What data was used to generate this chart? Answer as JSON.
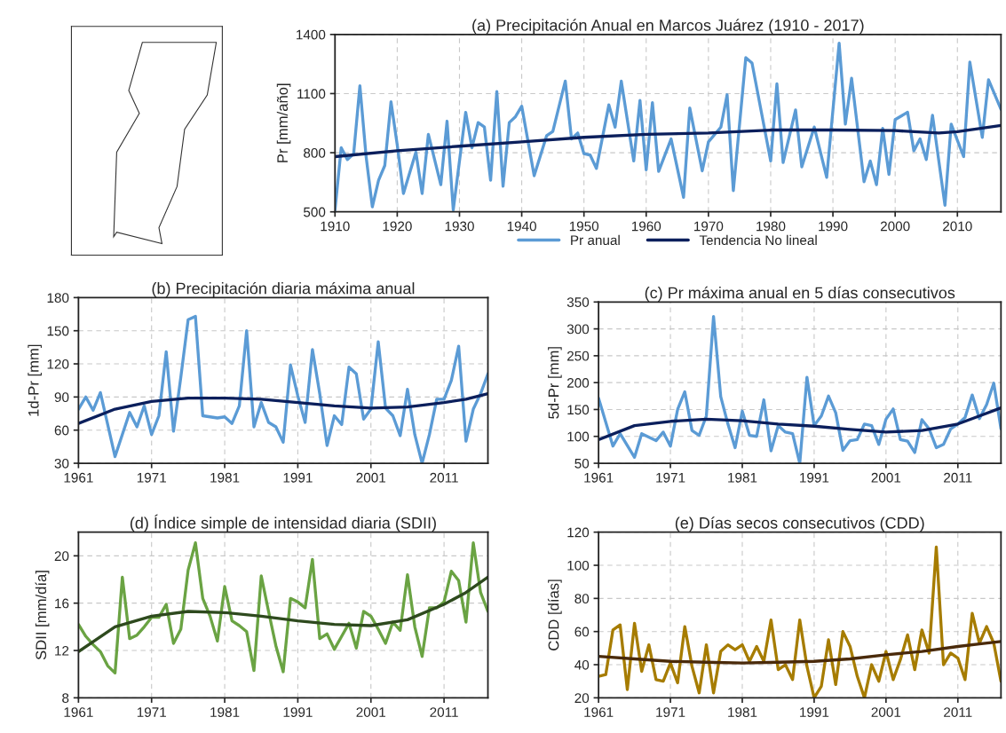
{
  "chart_data": [
    {
      "type": "line",
      "title": "(a) Precipitación Anual en Marcos Juárez (1910 - 2017)",
      "ylabel": "Pr [mm/año]",
      "xlim": [
        1910,
        2017
      ],
      "xticks": [
        1910,
        1920,
        1930,
        1940,
        1950,
        1960,
        1970,
        1980,
        1990,
        2000,
        2010
      ],
      "ylim": [
        500,
        1400
      ],
      "yticks": [
        500,
        800,
        1100,
        1400
      ],
      "grid": true,
      "legend": "bottom",
      "series": [
        {
          "name": "Pr anual",
          "color": "#5b9bd5",
          "x": [
            1910,
            1911,
            1912,
            1913,
            1914,
            1915,
            1916,
            1917,
            1918,
            1919,
            1920,
            1921,
            1923,
            1924,
            1925,
            1927,
            1928,
            1929,
            1931,
            1932,
            1933,
            1934,
            1935,
            1936,
            1937,
            1938,
            1939,
            1940,
            1942,
            1944,
            1945,
            1947,
            1948,
            1949,
            1950,
            1951,
            1952,
            1954,
            1955,
            1956,
            1958,
            1959,
            1960,
            1961,
            1962,
            1964,
            1966,
            1967,
            1969,
            1970,
            1972,
            1973,
            1974,
            1976,
            1977,
            1980,
            1981,
            1982,
            1984,
            1985,
            1987,
            1989,
            1991,
            1992,
            1993,
            1995,
            1996,
            1997,
            1998,
            1999,
            2000,
            2002,
            2003,
            2004,
            2005,
            2006,
            2008,
            2009,
            2011,
            2012,
            2014,
            2015,
            2017
          ],
          "values": [
            510,
            825,
            765,
            795,
            1140,
            780,
            525,
            660,
            735,
            1058,
            840,
            593,
            803,
            593,
            893,
            638,
            960,
            510,
            1005,
            825,
            953,
            930,
            660,
            1110,
            630,
            953,
            983,
            1036,
            683,
            886,
            908,
            1163,
            870,
            900,
            795,
            788,
            720,
            1043,
            930,
            1163,
            758,
            1065,
            713,
            1054,
            705,
            870,
            574,
            1027,
            708,
            855,
            930,
            1094,
            608,
            1282,
            1255,
            758,
            1150,
            750,
            1017,
            728,
            930,
            675,
            1356,
            945,
            1178,
            653,
            758,
            638,
            923,
            690,
            968,
            1005,
            810,
            870,
            765,
            990,
            533,
            945,
            780,
            1260,
            878,
            1170,
            1020
          ]
        },
        {
          "name": "Tendencia No lineal",
          "color": "#0b1f5c",
          "x": [
            1910,
            1920,
            1930,
            1940,
            1950,
            1960,
            1970,
            1980,
            1990,
            2000,
            2007,
            2010,
            2017
          ],
          "values": [
            780,
            810,
            833,
            855,
            878,
            893,
            900,
            915,
            915,
            912,
            900,
            907,
            938
          ]
        }
      ]
    },
    {
      "type": "line",
      "title": "(b) Precipitación diaria máxima anual",
      "ylabel": "1d-Pr [mm]",
      "xlim": [
        1961,
        2017
      ],
      "xticks": [
        1961,
        1971,
        1981,
        1991,
        2001,
        2011
      ],
      "ylim": [
        30,
        180
      ],
      "yticks": [
        30,
        60,
        90,
        120,
        150,
        180
      ],
      "grid": true,
      "series": [
        {
          "color": "#5b9bd5",
          "x": [
            1961,
            1962,
            1963,
            1964,
            1966,
            1968,
            1969,
            1970,
            1971,
            1972,
            1973,
            1974,
            1975,
            1976,
            1977,
            1978,
            1980,
            1981,
            1982,
            1983,
            1984,
            1985,
            1986,
            1987,
            1988,
            1989,
            1990,
            1991,
            1992,
            1993,
            1994,
            1995,
            1996,
            1997,
            1998,
            1999,
            2000,
            2001,
            2002,
            2003,
            2004,
            2005,
            2006,
            2007,
            2008,
            2009,
            2010,
            2011,
            2012,
            2013,
            2014,
            2015,
            2016,
            2017
          ],
          "values": [
            79,
            90,
            78,
            94,
            36,
            76,
            63,
            82,
            56,
            73,
            131,
            59,
            108,
            160,
            163,
            73,
            71,
            72,
            66,
            82,
            150,
            63,
            85,
            67,
            63,
            49,
            119,
            91,
            67,
            133,
            93,
            46,
            73,
            65,
            117,
            111,
            70,
            79,
            140,
            80,
            73,
            55,
            97,
            56,
            30,
            56,
            88,
            88,
            105,
            136,
            50,
            79,
            93,
            111
          ]
        },
        {
          "color": "#0b1f5c",
          "x": [
            1961,
            1966,
            1971,
            1976,
            1981,
            1986,
            1991,
            1996,
            2001,
            2006,
            2011,
            2014,
            2017
          ],
          "values": [
            66,
            79,
            86,
            89,
            89,
            88,
            85,
            82,
            80,
            81,
            85,
            88,
            93
          ]
        }
      ]
    },
    {
      "type": "line",
      "title": "(c) Pr máxima anual en 5 días consecutivos",
      "ylabel": "5d-Pr [mm]",
      "xlim": [
        1961,
        2017
      ],
      "xticks": [
        1961,
        1971,
        1981,
        1991,
        2001,
        2011
      ],
      "ylim": [
        50,
        350
      ],
      "yticks": [
        50,
        100,
        150,
        200,
        250,
        300,
        350
      ],
      "grid": true,
      "series": [
        {
          "color": "#5b9bd5",
          "x": [
            1961,
            1963,
            1964,
            1966,
            1967,
            1969,
            1970,
            1971,
            1972,
            1973,
            1974,
            1975,
            1976,
            1977,
            1978,
            1979,
            1980,
            1981,
            1982,
            1983,
            1984,
            1985,
            1986,
            1987,
            1988,
            1989,
            1990,
            1991,
            1992,
            1993,
            1994,
            1995,
            1996,
            1997,
            1998,
            1999,
            2000,
            2001,
            2002,
            2003,
            2004,
            2005,
            2006,
            2007,
            2008,
            2009,
            2010,
            2011,
            2012,
            2013,
            2014,
            2015,
            2016,
            2017
          ],
          "values": [
            171,
            82,
            105,
            61,
            105,
            92,
            108,
            82,
            150,
            183,
            111,
            102,
            138,
            323,
            174,
            123,
            79,
            147,
            102,
            100,
            168,
            73,
            120,
            108,
            105,
            50,
            210,
            120,
            138,
            175,
            144,
            74,
            92,
            94,
            123,
            120,
            85,
            132,
            151,
            94,
            91,
            70,
            131,
            114,
            79,
            85,
            114,
            123,
            135,
            177,
            133,
            159,
            199,
            114
          ]
        },
        {
          "color": "#0b1f5c",
          "x": [
            1961,
            1966,
            1971,
            1976,
            1981,
            1986,
            1991,
            1996,
            2001,
            2006,
            2011,
            2014,
            2017
          ],
          "values": [
            94,
            120,
            128,
            132,
            129,
            123,
            119,
            113,
            108,
            111,
            123,
            138,
            153
          ]
        }
      ]
    },
    {
      "type": "line",
      "title": "(d) Índice simple de intensidad diaria (SDII)",
      "ylabel": "SDII [mm/día]",
      "xlim": [
        1961,
        2017
      ],
      "xticks": [
        1961,
        1971,
        1981,
        1991,
        2001,
        2011
      ],
      "ylim": [
        8,
        22
      ],
      "yticks": [
        8,
        12,
        16,
        20
      ],
      "grid": true,
      "series": [
        {
          "color": "#6aa343",
          "x": [
            1961,
            1962,
            1963,
            1964,
            1965,
            1966,
            1967,
            1968,
            1969,
            1970,
            1971,
            1972,
            1973,
            1974,
            1975,
            1976,
            1977,
            1978,
            1979,
            1980,
            1981,
            1982,
            1983,
            1984,
            1985,
            1986,
            1987,
            1988,
            1989,
            1990,
            1991,
            1992,
            1993,
            1994,
            1995,
            1996,
            1997,
            1998,
            1999,
            2000,
            2001,
            2002,
            2003,
            2004,
            2005,
            2006,
            2007,
            2008,
            2009,
            2010,
            2011,
            2012,
            2013,
            2014,
            2015,
            2016,
            2017
          ],
          "values": [
            14.2,
            13.2,
            12.5,
            11.9,
            10.7,
            10.1,
            18.2,
            13.0,
            13.3,
            14.0,
            14.8,
            14.8,
            15.9,
            12.6,
            13.8,
            18.8,
            21.1,
            16.4,
            14.9,
            12.8,
            17.4,
            14.5,
            14.1,
            13.6,
            10.3,
            18.3,
            15.3,
            12.4,
            10.2,
            16.4,
            16.1,
            15.6,
            19.7,
            13.0,
            13.4,
            12.1,
            13.2,
            14.3,
            12.2,
            15.3,
            14.9,
            13.8,
            12.6,
            14.4,
            13.7,
            18.4,
            14.0,
            11.5,
            15.6,
            15.6,
            16.1,
            18.7,
            17.9,
            14.4,
            21.1,
            16.9,
            15.3
          ]
        },
        {
          "color": "#2e4a1e",
          "x": [
            1961,
            1966,
            1971,
            1976,
            1981,
            1986,
            1991,
            1996,
            2001,
            2006,
            2011,
            2014,
            2017
          ],
          "values": [
            11.9,
            14.0,
            14.9,
            15.3,
            15.2,
            14.9,
            14.5,
            14.2,
            14.1,
            14.6,
            15.9,
            16.9,
            18.2
          ]
        }
      ]
    },
    {
      "type": "line",
      "title": "(e) Días secos consecutivos (CDD)",
      "ylabel": "CDD [días]",
      "xlim": [
        1961,
        2017
      ],
      "xticks": [
        1961,
        1971,
        1981,
        1991,
        2001,
        2011
      ],
      "ylim": [
        20,
        120
      ],
      "yticks": [
        20,
        40,
        60,
        80,
        100,
        120
      ],
      "grid": true,
      "series": [
        {
          "color": "#a67c00",
          "x": [
            1961,
            1962,
            1963,
            1964,
            1965,
            1966,
            1967,
            1968,
            1969,
            1970,
            1971,
            1972,
            1973,
            1974,
            1975,
            1976,
            1977,
            1978,
            1979,
            1980,
            1981,
            1982,
            1983,
            1984,
            1985,
            1986,
            1987,
            1988,
            1989,
            1990,
            1991,
            1992,
            1993,
            1994,
            1995,
            1996,
            1997,
            1998,
            1999,
            2000,
            2001,
            2002,
            2003,
            2004,
            2005,
            2006,
            2007,
            2008,
            2009,
            2010,
            2011,
            2012,
            2013,
            2014,
            2015,
            2016,
            2017
          ],
          "values": [
            33,
            34,
            61,
            64,
            25,
            65,
            36,
            52,
            31,
            30,
            41,
            29,
            63,
            39,
            23,
            52,
            23,
            48,
            52,
            49,
            52,
            42,
            51,
            42,
            67,
            37,
            40,
            31,
            67,
            39,
            20,
            27,
            55,
            28,
            60,
            51,
            33,
            20,
            40,
            30,
            48,
            31,
            43,
            58,
            37,
            61,
            47,
            111,
            40,
            47,
            44,
            31,
            71,
            53,
            63,
            53,
            30
          ]
        },
        {
          "color": "#4a2a0a",
          "x": [
            1961,
            1966,
            1971,
            1976,
            1981,
            1986,
            1991,
            1996,
            2001,
            2006,
            2011,
            2014,
            2017
          ],
          "values": [
            45,
            43.5,
            42,
            41.5,
            41,
            41.5,
            42,
            43.5,
            46,
            48,
            51,
            52.5,
            54
          ]
        }
      ]
    }
  ]
}
